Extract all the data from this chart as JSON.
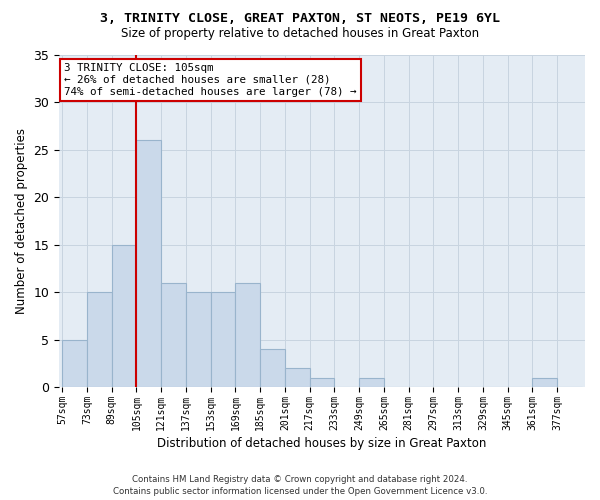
{
  "title1": "3, TRINITY CLOSE, GREAT PAXTON, ST NEOTS, PE19 6YL",
  "title2": "Size of property relative to detached houses in Great Paxton",
  "xlabel": "Distribution of detached houses by size in Great Paxton",
  "ylabel": "Number of detached properties",
  "bin_left_edges": [
    57,
    73,
    89,
    105,
    121,
    137,
    153,
    169,
    185,
    201,
    217,
    233,
    249,
    265,
    281,
    297,
    313,
    329,
    345,
    361,
    377
  ],
  "bin_labels": [
    "57sqm",
    "73sqm",
    "89sqm",
    "105sqm",
    "121sqm",
    "137sqm",
    "153sqm",
    "169sqm",
    "185sqm",
    "201sqm",
    "217sqm",
    "233sqm",
    "249sqm",
    "265sqm",
    "281sqm",
    "297sqm",
    "313sqm",
    "329sqm",
    "345sqm",
    "361sqm",
    "377sqm"
  ],
  "values": [
    5,
    10,
    15,
    26,
    11,
    10,
    10,
    11,
    4,
    2,
    1,
    0,
    1,
    0,
    0,
    0,
    0,
    0,
    0,
    1,
    0
  ],
  "bin_width": 16,
  "bar_color": "#cad9ea",
  "bar_edge_color": "#99b4cc",
  "vline_x": 105,
  "vline_color": "#cc0000",
  "annotation_text": "3 TRINITY CLOSE: 105sqm\n← 26% of detached houses are smaller (28)\n74% of semi-detached houses are larger (78) →",
  "annotation_box_color": "#ffffff",
  "annotation_box_edge": "#cc0000",
  "ylim": [
    0,
    35
  ],
  "yticks": [
    0,
    5,
    10,
    15,
    20,
    25,
    30,
    35
  ],
  "grid_color": "#c8d4e0",
  "bg_color": "#e4ecf4",
  "footer1": "Contains HM Land Registry data © Crown copyright and database right 2024.",
  "footer2": "Contains public sector information licensed under the Open Government Licence v3.0."
}
